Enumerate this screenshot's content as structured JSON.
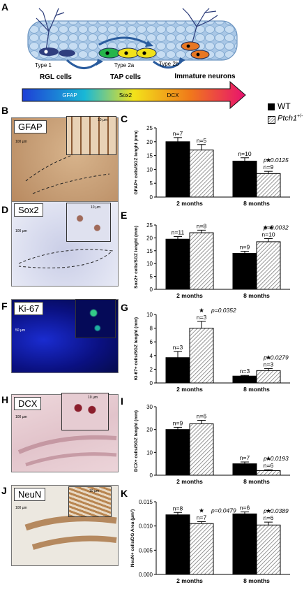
{
  "panel_letters": {
    "A": "A",
    "B": "B",
    "C": "C",
    "D": "D",
    "E": "E",
    "F": "F",
    "G": "G",
    "H": "H",
    "I": "I",
    "J": "J",
    "K": "K"
  },
  "diagram": {
    "cells": [
      {
        "label": "Type 1",
        "color": "#2f3e7e"
      },
      {
        "label": "Type 2a",
        "color": "#25b54a"
      },
      {
        "label": "Type 2a",
        "color": "#f2e21a"
      },
      {
        "label": "Type 2b",
        "color": "#e87722"
      }
    ],
    "groups": [
      "RGL cells",
      "TAP cells",
      "Immature neurons"
    ],
    "markers": [
      "GFAP",
      "Sox2",
      "DCX"
    ]
  },
  "legend": {
    "wt": "WT",
    "ptch": "Ptch1",
    "ptch_sup": "+/-"
  },
  "images": {
    "gfap": {
      "label": "GFAP",
      "scale_main": "100 µm",
      "scale_inset": "10 µm"
    },
    "sox2": {
      "label": "Sox2",
      "scale_main": "100 µm",
      "scale_inset": "10 µm"
    },
    "ki67": {
      "label": "Ki-67",
      "scale_main": "50 µm"
    },
    "dcx": {
      "label": "DCX",
      "scale_main": "100 µm",
      "scale_inset": "10 µm"
    },
    "neun": {
      "label": "NeuN",
      "scale_main": "100 µm",
      "scale_inset": "10 µm"
    }
  },
  "chart_data": [
    {
      "id": "C",
      "type": "bar",
      "categories": [
        "2 months",
        "8 months"
      ],
      "ylabel": "GFAP+ cells/SGZ lenght (mm)",
      "ylim": [
        0,
        25
      ],
      "yticks": [
        0,
        5,
        10,
        15,
        20,
        25
      ],
      "series": [
        {
          "name": "WT",
          "values": [
            20,
            13
          ],
          "errors": [
            1.5,
            1.2
          ],
          "n": [
            "n=7",
            "n=10"
          ]
        },
        {
          "name": "Ptch1+/-",
          "values": [
            17,
            8.5
          ],
          "errors": [
            2,
            0.8
          ],
          "n": [
            "n=5",
            "n=9"
          ]
        }
      ],
      "annotations": [
        {
          "group": 1,
          "stars": "★",
          "p": "p=0.0125"
        }
      ]
    },
    {
      "id": "E",
      "type": "bar",
      "categories": [
        "2 months",
        "8 months"
      ],
      "ylabel": "Sox2+ cells/SGZ lenght (mm)",
      "ylim": [
        0,
        25
      ],
      "yticks": [
        0,
        5,
        10,
        15,
        20,
        25
      ],
      "series": [
        {
          "name": "WT",
          "values": [
            19.5,
            14
          ],
          "errors": [
            1,
            0.8
          ],
          "n": [
            "n=11",
            "n=9"
          ]
        },
        {
          "name": "Ptch1+/-",
          "values": [
            22,
            18.5
          ],
          "errors": [
            1,
            1.2
          ],
          "n": [
            "n=8",
            "n=10"
          ]
        }
      ],
      "annotations": [
        {
          "group": 1,
          "stars": "★★",
          "p": "p=0.0032"
        }
      ]
    },
    {
      "id": "G",
      "type": "bar",
      "categories": [
        "2 months",
        "8 months"
      ],
      "ylabel": "Ki-67+ cells/SGZ lenght (mm)",
      "ylim": [
        0,
        10
      ],
      "yticks": [
        0,
        2,
        4,
        6,
        8,
        10
      ],
      "series": [
        {
          "name": "WT",
          "values": [
            3.7,
            1
          ],
          "errors": [
            0.9,
            0.1
          ],
          "n": [
            "n=3",
            "n=3"
          ]
        },
        {
          "name": "Ptch1+/-",
          "values": [
            8,
            1.8
          ],
          "errors": [
            1,
            0.3
          ],
          "n": [
            "n=3",
            "n=3"
          ]
        }
      ],
      "annotations": [
        {
          "group": 0,
          "stars": "★",
          "p": "p=0.0352"
        },
        {
          "group": 1,
          "stars": "★",
          "p": "p=0.0279"
        }
      ]
    },
    {
      "id": "I",
      "type": "bar",
      "categories": [
        "2 months",
        "8 months"
      ],
      "ylabel": "DCX+ cells/SGZ lenght (mm)",
      "ylim": [
        0,
        30
      ],
      "yticks": [
        0,
        10,
        20,
        30
      ],
      "series": [
        {
          "name": "WT",
          "values": [
            20,
            5
          ],
          "errors": [
            1,
            0.8
          ],
          "n": [
            "n=9",
            "n=7"
          ]
        },
        {
          "name": "Ptch1+/-",
          "values": [
            22.5,
            2
          ],
          "errors": [
            1.5,
            0.4
          ],
          "n": [
            "n=6",
            "n=6"
          ]
        }
      ],
      "annotations": [
        {
          "group": 1,
          "stars": "★",
          "p": "p=0.0193"
        }
      ]
    },
    {
      "id": "K",
      "type": "bar",
      "categories": [
        "2 months",
        "8 months"
      ],
      "ylabel": "NeuN+ cells/DG Area (µm²)",
      "ylim": [
        0,
        0.015
      ],
      "yticks": [
        0,
        0.005,
        0.01,
        0.015
      ],
      "ytick_labels": [
        "0.000",
        "0.005",
        "0.010",
        "0.015"
      ],
      "series": [
        {
          "name": "WT",
          "values": [
            0.0123,
            0.0125
          ],
          "errors": [
            0.0005,
            0.0004
          ],
          "n": [
            "n=8",
            "n=6"
          ]
        },
        {
          "name": "Ptch1+/-",
          "values": [
            0.0105,
            0.0102
          ],
          "errors": [
            0.0004,
            0.0006
          ],
          "n": [
            "n=7",
            "n=6"
          ]
        }
      ],
      "annotations": [
        {
          "group": 0,
          "stars": "★",
          "p": "p=0.0479"
        },
        {
          "group": 1,
          "stars": "★",
          "p": "p=0.0389"
        }
      ]
    }
  ]
}
